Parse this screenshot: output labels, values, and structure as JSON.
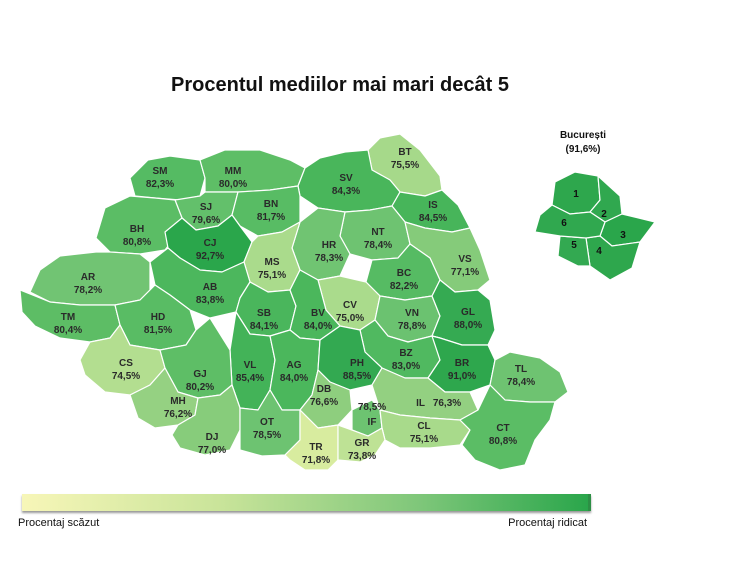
{
  "title": "Procentul mediilor mai mari decât 5",
  "bucuresti": {
    "title": "București",
    "value": "(91,6%)",
    "sectors": [
      "1",
      "2",
      "3",
      "4",
      "5",
      "6"
    ]
  },
  "legend": {
    "low": "Procentaj scăzut",
    "high": "Procentaj ridicat",
    "low_color": "#f7f6b8",
    "high_color": "#2aa64b"
  },
  "counties": [
    {
      "code": "SM",
      "value": "82,3%",
      "color": "#55bb63"
    },
    {
      "code": "MM",
      "value": "80,0%",
      "color": "#5ebe66"
    },
    {
      "code": "BT",
      "value": "75,5%",
      "color": "#a6d98a"
    },
    {
      "code": "SV",
      "value": "84,3%",
      "color": "#49b65b"
    },
    {
      "code": "SJ",
      "value": "79,6%",
      "color": "#63c06b"
    },
    {
      "code": "BN",
      "value": "81,7%",
      "color": "#58bc64"
    },
    {
      "code": "IS",
      "value": "84,5%",
      "color": "#47b55a"
    },
    {
      "code": "BH",
      "value": "80,8%",
      "color": "#5bbd65"
    },
    {
      "code": "CJ",
      "value": "92,7%",
      "color": "#2aa64b"
    },
    {
      "code": "NT",
      "value": "78,4%",
      "color": "#6ec371"
    },
    {
      "code": "HR",
      "value": "78,3%",
      "color": "#70c472"
    },
    {
      "code": "MS",
      "value": "75,1%",
      "color": "#aadb8c"
    },
    {
      "code": "VS",
      "value": "77,1%",
      "color": "#85cb7a"
    },
    {
      "code": "AR",
      "value": "78,2%",
      "color": "#71c473"
    },
    {
      "code": "BC",
      "value": "82,2%",
      "color": "#56bb63"
    },
    {
      "code": "AB",
      "value": "83,8%",
      "color": "#4cb75d"
    },
    {
      "code": "CV",
      "value": "75,0%",
      "color": "#aadb8c"
    },
    {
      "code": "TM",
      "value": "80,4%",
      "color": "#5dbd65"
    },
    {
      "code": "HD",
      "value": "81,5%",
      "color": "#59bc64"
    },
    {
      "code": "SB",
      "value": "84,1%",
      "color": "#4ab65c"
    },
    {
      "code": "BV",
      "value": "84,0%",
      "color": "#4bb75c"
    },
    {
      "code": "VN",
      "value": "78,8%",
      "color": "#6bc270"
    },
    {
      "code": "GL",
      "value": "88,0%",
      "color": "#35aa52"
    },
    {
      "code": "BZ",
      "value": "83,0%",
      "color": "#50b960"
    },
    {
      "code": "CS",
      "value": "74,5%",
      "color": "#b3de90"
    },
    {
      "code": "VL",
      "value": "85,4%",
      "color": "#43b358"
    },
    {
      "code": "AG",
      "value": "84,0%",
      "color": "#4bb75c"
    },
    {
      "code": "PH",
      "value": "88,5%",
      "color": "#33a951"
    },
    {
      "code": "BR",
      "value": "91,0%",
      "color": "#2ea74d"
    },
    {
      "code": "TL",
      "value": "78,4%",
      "color": "#6ec371"
    },
    {
      "code": "GJ",
      "value": "80,2%",
      "color": "#5ebe66"
    },
    {
      "code": "DB",
      "value": "76,6%",
      "color": "#8ece7e"
    },
    {
      "code": "MH",
      "value": "76,2%",
      "color": "#95d182"
    },
    {
      "code": "IL",
      "value": "76,3%",
      "color": "#93d081"
    },
    {
      "code": "DJ",
      "value": "77,0%",
      "color": "#87cc7b"
    },
    {
      "code": "OT",
      "value": "78,5%",
      "color": "#6dc371"
    },
    {
      "code": "IF",
      "value": "78,5%",
      "color": "#6dc371"
    },
    {
      "code": "CL",
      "value": "75,1%",
      "color": "#a8da8b"
    },
    {
      "code": "CT",
      "value": "80,8%",
      "color": "#5bbd65"
    },
    {
      "code": "TR",
      "value": "71,8%",
      "color": "#d8ec9f"
    },
    {
      "code": "GR",
      "value": "73,8%",
      "color": "#bee295"
    }
  ]
}
